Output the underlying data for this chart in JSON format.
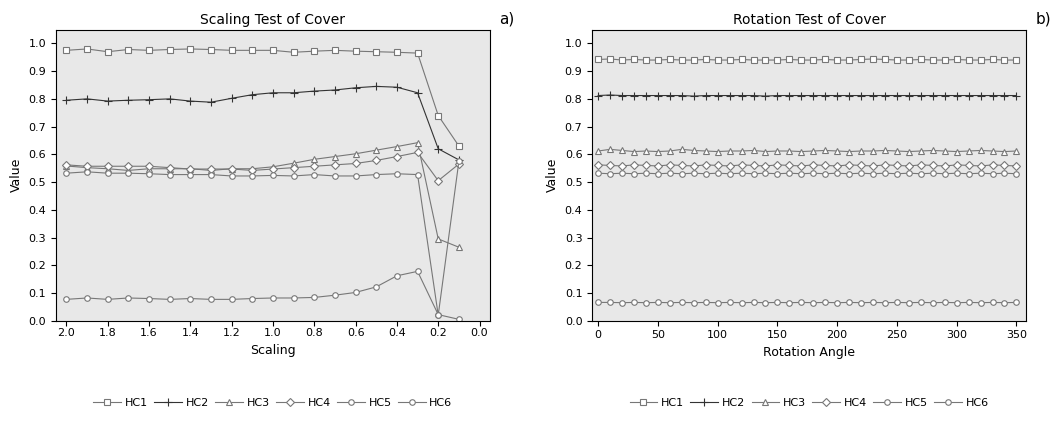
{
  "title_a": "Scaling Test of Cover",
  "title_b": "Rotation Test of Cover",
  "label_a": "a)",
  "label_b": "b)",
  "xlabel_a": "Scaling",
  "xlabel_b": "Rotation Angle",
  "ylabel": "Value",
  "scaling_x": [
    2.0,
    1.9,
    1.8,
    1.7,
    1.6,
    1.5,
    1.4,
    1.3,
    1.2,
    1.1,
    1.0,
    0.9,
    0.8,
    0.7,
    0.6,
    0.5,
    0.4,
    0.3,
    0.2,
    0.1
  ],
  "rotation_x": [
    0,
    10,
    20,
    30,
    40,
    50,
    60,
    70,
    80,
    90,
    100,
    110,
    120,
    130,
    140,
    150,
    160,
    170,
    180,
    190,
    200,
    210,
    220,
    230,
    240,
    250,
    260,
    270,
    280,
    290,
    300,
    310,
    320,
    330,
    340,
    350
  ],
  "scaling_data": {
    "HC1": [
      0.975,
      0.98,
      0.97,
      0.978,
      0.975,
      0.978,
      0.98,
      0.978,
      0.975,
      0.975,
      0.975,
      0.968,
      0.972,
      0.975,
      0.972,
      0.97,
      0.968,
      0.965,
      0.74,
      0.63
    ],
    "HC2": [
      0.795,
      0.8,
      0.792,
      0.795,
      0.797,
      0.8,
      0.792,
      0.788,
      0.802,
      0.815,
      0.822,
      0.822,
      0.828,
      0.832,
      0.84,
      0.845,
      0.842,
      0.822,
      0.62,
      0.58
    ],
    "HC3": [
      0.558,
      0.552,
      0.548,
      0.542,
      0.548,
      0.548,
      0.548,
      0.542,
      0.548,
      0.548,
      0.555,
      0.568,
      0.582,
      0.592,
      0.602,
      0.615,
      0.628,
      0.642,
      0.295,
      0.265
    ],
    "HC4": [
      0.562,
      0.557,
      0.557,
      0.557,
      0.557,
      0.552,
      0.547,
      0.547,
      0.547,
      0.542,
      0.547,
      0.552,
      0.557,
      0.562,
      0.567,
      0.578,
      0.592,
      0.607,
      0.505,
      0.565
    ],
    "HC5": [
      0.532,
      0.537,
      0.532,
      0.532,
      0.53,
      0.527,
      0.527,
      0.527,
      0.522,
      0.522,
      0.524,
      0.522,
      0.527,
      0.522,
      0.522,
      0.527,
      0.53,
      0.527,
      0.02,
      0.575
    ],
    "HC6": [
      0.077,
      0.082,
      0.077,
      0.082,
      0.08,
      0.077,
      0.08,
      0.077,
      0.077,
      0.08,
      0.082,
      0.082,
      0.084,
      0.092,
      0.102,
      0.122,
      0.162,
      0.178,
      0.022,
      0.005
    ]
  },
  "rotation_data": {
    "HC1": [
      0.942,
      0.944,
      0.94,
      0.942,
      0.94,
      0.94,
      0.942,
      0.94,
      0.94,
      0.942,
      0.94,
      0.94,
      0.942,
      0.94,
      0.94,
      0.94,
      0.942,
      0.94,
      0.94,
      0.942,
      0.94,
      0.94,
      0.942,
      0.944,
      0.942,
      0.94,
      0.94,
      0.942,
      0.94,
      0.94,
      0.942,
      0.94,
      0.94,
      0.942,
      0.94,
      0.94
    ],
    "HC2": [
      0.812,
      0.814,
      0.812,
      0.812,
      0.812,
      0.812,
      0.812,
      0.812,
      0.81,
      0.812,
      0.812,
      0.812,
      0.812,
      0.812,
      0.81,
      0.812,
      0.812,
      0.812,
      0.812,
      0.812,
      0.812,
      0.812,
      0.812,
      0.812,
      0.812,
      0.812,
      0.812,
      0.812,
      0.812,
      0.812,
      0.812,
      0.812,
      0.812,
      0.812,
      0.812,
      0.812
    ],
    "HC3": [
      0.612,
      0.618,
      0.614,
      0.61,
      0.612,
      0.61,
      0.612,
      0.618,
      0.614,
      0.612,
      0.61,
      0.612,
      0.612,
      0.614,
      0.61,
      0.612,
      0.612,
      0.61,
      0.612,
      0.614,
      0.612,
      0.61,
      0.612,
      0.612,
      0.614,
      0.612,
      0.61,
      0.612,
      0.614,
      0.612,
      0.61,
      0.612,
      0.614,
      0.612,
      0.61,
      0.612
    ],
    "HC4": [
      0.562,
      0.56,
      0.558,
      0.562,
      0.56,
      0.558,
      0.562,
      0.56,
      0.558,
      0.562,
      0.56,
      0.558,
      0.562,
      0.56,
      0.558,
      0.562,
      0.56,
      0.558,
      0.562,
      0.56,
      0.558,
      0.562,
      0.56,
      0.558,
      0.562,
      0.56,
      0.558,
      0.562,
      0.56,
      0.558,
      0.562,
      0.56,
      0.558,
      0.562,
      0.56,
      0.558
    ],
    "HC5": [
      0.532,
      0.53,
      0.532,
      0.53,
      0.532,
      0.53,
      0.532,
      0.53,
      0.532,
      0.53,
      0.532,
      0.53,
      0.532,
      0.53,
      0.532,
      0.53,
      0.532,
      0.53,
      0.532,
      0.53,
      0.532,
      0.53,
      0.532,
      0.53,
      0.532,
      0.53,
      0.532,
      0.53,
      0.532,
      0.53,
      0.532,
      0.53,
      0.532,
      0.53,
      0.532,
      0.53
    ],
    "HC6": [
      0.066,
      0.066,
      0.065,
      0.066,
      0.065,
      0.066,
      0.065,
      0.066,
      0.065,
      0.066,
      0.065,
      0.066,
      0.065,
      0.066,
      0.065,
      0.066,
      0.065,
      0.066,
      0.065,
      0.066,
      0.065,
      0.066,
      0.065,
      0.066,
      0.065,
      0.066,
      0.065,
      0.066,
      0.065,
      0.066,
      0.065,
      0.066,
      0.065,
      0.066,
      0.065,
      0.066
    ]
  },
  "series": [
    "HC1",
    "HC2",
    "HC3",
    "HC4",
    "HC5",
    "HC6"
  ],
  "colors": {
    "HC1": "#777777",
    "HC2": "#333333",
    "HC3": "#777777",
    "HC4": "#777777",
    "HC5": "#777777",
    "HC6": "#777777"
  },
  "markers": {
    "HC1": "s",
    "HC2": "+",
    "HC3": "^",
    "HC4": "D",
    "HC5": "o",
    "HC6": "o"
  },
  "markersizes": {
    "HC1": 4,
    "HC2": 6,
    "HC3": 4,
    "HC4": 4,
    "HC5": 4,
    "HC6": 4
  },
  "markerfilled": {
    "HC1": false,
    "HC2": true,
    "HC3": false,
    "HC4": false,
    "HC5": false,
    "HC6": false
  },
  "linewidths": {
    "HC1": 0.8,
    "HC2": 0.8,
    "HC3": 0.8,
    "HC4": 0.8,
    "HC5": 0.8,
    "HC6": 0.8
  },
  "ylim": [
    0,
    1.05
  ],
  "yticks": [
    0,
    0.1,
    0.2,
    0.3,
    0.4,
    0.5,
    0.6,
    0.7,
    0.8,
    0.9,
    1
  ],
  "scaling_xticks": [
    2,
    1.8,
    1.6,
    1.4,
    1.2,
    1.0,
    0.8,
    0.6,
    0.4,
    0.2,
    0
  ],
  "rotation_xticks": [
    0,
    50,
    100,
    150,
    200,
    250,
    300,
    350
  ],
  "bg_color": "#e8e8e8"
}
